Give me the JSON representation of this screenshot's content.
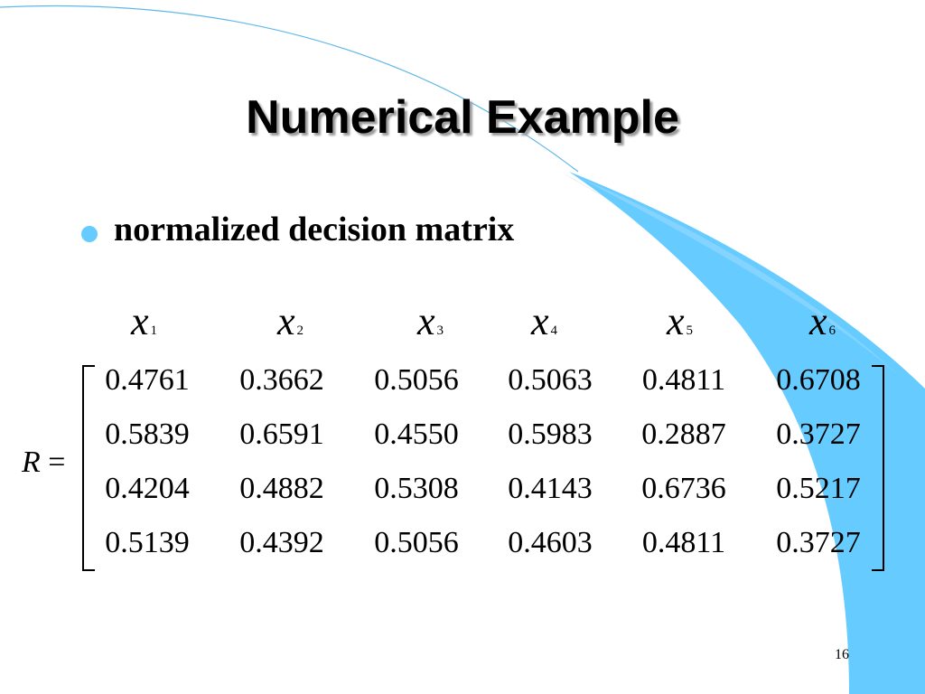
{
  "slide": {
    "title": "Numerical Example",
    "bullet": "normalized decision matrix",
    "page_number": "16"
  },
  "matrix": {
    "label": "R",
    "equals": "=",
    "columns": [
      {
        "var": "x",
        "sub": "1"
      },
      {
        "var": "x",
        "sub": "2"
      },
      {
        "var": "x",
        "sub": "3"
      },
      {
        "var": "x",
        "sub": "4"
      },
      {
        "var": "x",
        "sub": "5"
      },
      {
        "var": "x",
        "sub": "6"
      }
    ],
    "rows": [
      [
        "0.4761",
        "0.3662",
        "0.5056",
        "0.5063",
        "0.4811",
        "0.6708"
      ],
      [
        "0.5839",
        "0.6591",
        "0.4550",
        "0.5983",
        "0.2887",
        "0.3727"
      ],
      [
        "0.4204",
        "0.4882",
        "0.5308",
        "0.4143",
        "0.6736",
        "0.5217"
      ],
      [
        "0.5139",
        "0.4392",
        "0.5056",
        "0.4603",
        "0.4811",
        "0.3727"
      ]
    ]
  },
  "colors": {
    "accent_blue": "#66ccff",
    "dark_blue": "#1c5c8c",
    "line_blue": "#5fb8e8"
  }
}
